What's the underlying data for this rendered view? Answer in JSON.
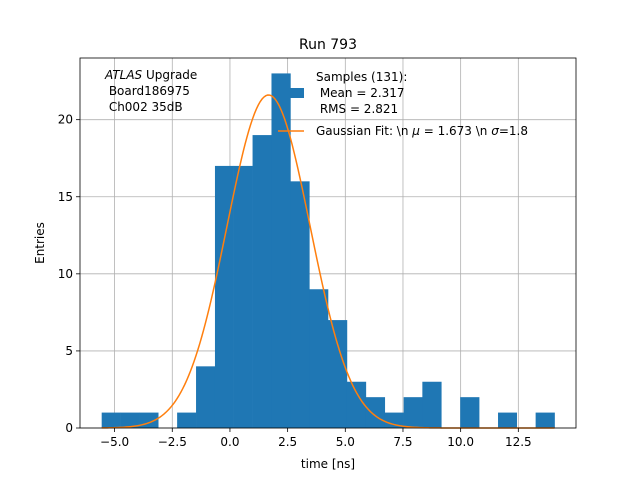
{
  "chart_data": {
    "type": "bar",
    "title": "Run 793",
    "xlabel": "time [ns]",
    "ylabel": "Entries",
    "xlim": [
      -6.5,
      15.0
    ],
    "ylim": [
      0,
      24
    ],
    "xticks": [
      -5.0,
      -2.5,
      0.0,
      2.5,
      5.0,
      7.5,
      10.0,
      12.5
    ],
    "xtick_labels": [
      "−5.0",
      "−2.5",
      "0.0",
      "2.5",
      "5.0",
      "7.5",
      "10.0",
      "12.5"
    ],
    "yticks": [
      0,
      5,
      10,
      15,
      20
    ],
    "ytick_labels": [
      "0",
      "5",
      "10",
      "15",
      "20"
    ],
    "grid": true,
    "legend_position": "top-right",
    "histogram": {
      "name_lines": [
        "Samples (131):",
        " Mean = 2.317",
        " RMS = 2.821"
      ],
      "color": "#1f77b4",
      "bins": [
        {
          "x0": -5.56,
          "x1": -4.74,
          "count": 1
        },
        {
          "x0": -4.74,
          "x1": -3.92,
          "count": 1
        },
        {
          "x0": -3.92,
          "x1": -3.11,
          "count": 1
        },
        {
          "x0": -3.11,
          "x1": -2.29,
          "count": 0
        },
        {
          "x0": -2.29,
          "x1": -1.47,
          "count": 1
        },
        {
          "x0": -1.47,
          "x1": -0.65,
          "count": 4
        },
        {
          "x0": -0.65,
          "x1": 0.16,
          "count": 17
        },
        {
          "x0": 0.16,
          "x1": 0.98,
          "count": 17
        },
        {
          "x0": 0.98,
          "x1": 1.8,
          "count": 19
        },
        {
          "x0": 1.8,
          "x1": 2.62,
          "count": 23
        },
        {
          "x0": 2.62,
          "x1": 3.44,
          "count": 16
        },
        {
          "x0": 3.44,
          "x1": 4.25,
          "count": 9
        },
        {
          "x0": 4.25,
          "x1": 5.07,
          "count": 7
        },
        {
          "x0": 5.07,
          "x1": 5.89,
          "count": 3
        },
        {
          "x0": 5.89,
          "x1": 6.71,
          "count": 2
        },
        {
          "x0": 6.71,
          "x1": 7.53,
          "count": 1
        },
        {
          "x0": 7.53,
          "x1": 8.34,
          "count": 2
        },
        {
          "x0": 8.34,
          "x1": 9.16,
          "count": 3
        },
        {
          "x0": 9.16,
          "x1": 9.98,
          "count": 0
        },
        {
          "x0": 9.98,
          "x1": 10.8,
          "count": 2
        },
        {
          "x0": 10.8,
          "x1": 11.62,
          "count": 0
        },
        {
          "x0": 11.62,
          "x1": 12.43,
          "count": 1
        },
        {
          "x0": 12.43,
          "x1": 13.25,
          "count": 0
        },
        {
          "x0": 13.25,
          "x1": 14.07,
          "count": 1
        }
      ]
    },
    "fit": {
      "name": "Gaussian Fit: \\n $\\mu$ = 1.673 \\n $\\sigma$=1.8",
      "legend_parts": [
        "Gaussian Fit: \\n ",
        "μ",
        " = 1.673 \\n ",
        "σ",
        "=1.8"
      ],
      "type": "gaussian",
      "mu": 1.673,
      "sigma": 1.8,
      "amplitude": 21.6,
      "x_range": [
        -5.56,
        14.07
      ],
      "color": "#ff7f0e"
    },
    "annotation": {
      "lines": [
        "ATLAS Upgrade",
        " Board186975",
        " Ch002 35dB"
      ],
      "italic_word": "ATLAS",
      "first_line_rest": " Upgrade",
      "position": "top-left"
    }
  }
}
